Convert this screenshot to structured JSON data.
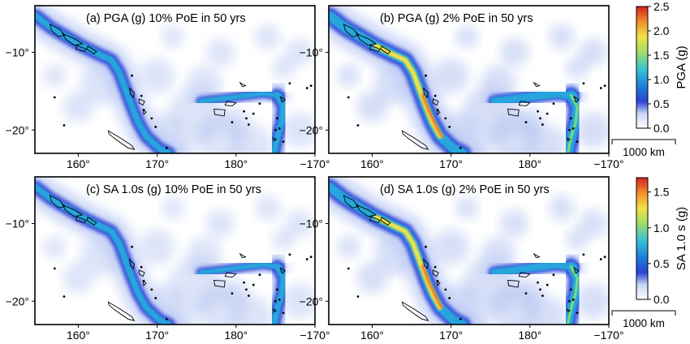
{
  "map_data": {
    "lon_ticks": [
      "160°",
      "170°",
      "180°",
      "−170°"
    ],
    "lat_ticks": [
      "−10°",
      "−20°"
    ],
    "panels": [
      {
        "title": "(a)   PGA (g) 10% PoE in 50 yrs",
        "intensity": 0.45,
        "colorbar": 0
      },
      {
        "title": "(b)   PGA (g) 2% PoE in 50 yrs",
        "intensity": 1.0,
        "colorbar": 0
      },
      {
        "title": "(c)   SA 1.0s (g) 10% PoE in 50 yrs",
        "intensity": 0.42,
        "colorbar": 1
      },
      {
        "title": "(d)   SA 1.0s (g) 2% PoE in 50 yrs",
        "intensity": 0.92,
        "colorbar": 1
      }
    ],
    "colorbars": [
      {
        "label": "PGA (g)",
        "min": 0,
        "max": 2.5,
        "ticks": [
          "0.0",
          "0.5",
          "1.0",
          "1.5",
          "2.0",
          "2.5"
        ]
      },
      {
        "label": "SA 1.0 s (g)",
        "min": 0,
        "max": 1.7,
        "ticks": [
          "0.0",
          "0.5",
          "1.0",
          "1.5"
        ]
      }
    ],
    "scale_bar": "1000 km",
    "colormap": [
      "#ffffff",
      "#dce6fa",
      "#2a43d6",
      "#1c8fd8",
      "#36c2d8",
      "#8fd86a",
      "#f0e040",
      "#ef7a2a",
      "#d42020"
    ]
  }
}
